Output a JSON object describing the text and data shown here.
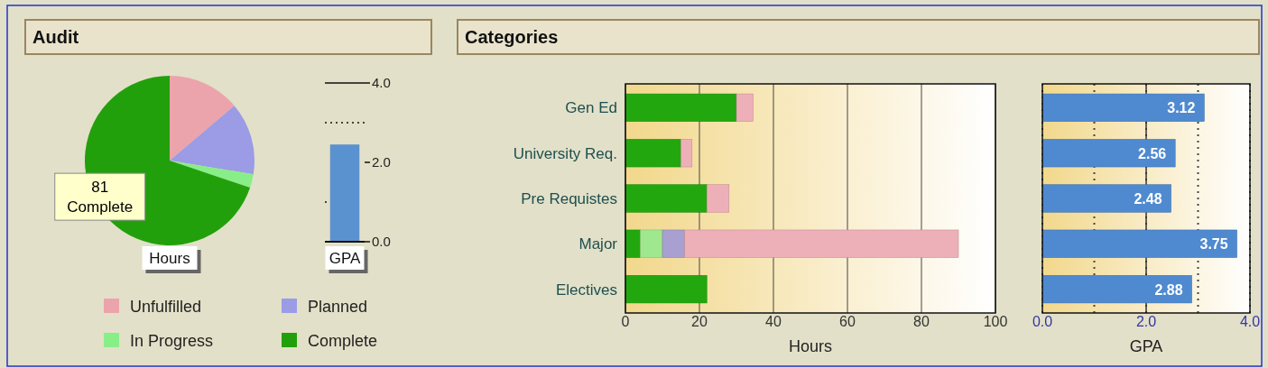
{
  "chart_data": [
    {
      "type": "pie",
      "title": "Audit",
      "xlabel": "Hours",
      "categories": [
        "Unfulfilled",
        "Planned",
        "In Progress",
        "Complete"
      ],
      "values": [
        16,
        16,
        3,
        81
      ],
      "colors": [
        "#eba4ab",
        "#9b9be6",
        "#88ee88",
        "#22a00c"
      ],
      "value_labels": [
        null,
        null,
        null,
        "81"
      ],
      "legend": "bottom"
    },
    {
      "type": "bar",
      "xlabel": "GPA",
      "categories": [
        null
      ],
      "values": [
        2.45
      ],
      "color": "#5a92d0",
      "ylim": [
        0,
        4
      ],
      "yticks": [
        {
          "value": 0,
          "label": "0.0"
        },
        {
          "value": 1,
          "label": null
        },
        {
          "value": 2,
          "label": "2.0"
        },
        {
          "value": 4,
          "label": "4.0"
        }
      ],
      "ref_lines": [
        {
          "axis": "y",
          "value": 3,
          "line_style": "dotted"
        },
        {
          "axis": "y",
          "value": 4,
          "line_style": "solid"
        }
      ]
    },
    {
      "type": "bar",
      "title": "Categories",
      "orientation": "horizontal",
      "stacked": true,
      "xlabel": "Hours",
      "categories": [
        "Gen Ed",
        "University Req.",
        "Pre Requistes",
        "Major",
        "Electives"
      ],
      "series": [
        {
          "color": "#22a80e",
          "values": [
            30,
            15,
            22,
            4,
            22
          ]
        },
        {
          "color": "#a0e890",
          "values": [
            0,
            0,
            0,
            6,
            0
          ]
        },
        {
          "color": "#a8a0d0",
          "values": [
            0,
            0,
            0,
            6,
            0
          ]
        },
        {
          "color": "#eeb0b8",
          "values": [
            4.5,
            3,
            6,
            74,
            0
          ]
        }
      ],
      "xlim": [
        0,
        100
      ],
      "xticks": [
        0,
        20,
        40,
        60,
        80,
        100
      ],
      "grid": "x"
    },
    {
      "type": "bar",
      "orientation": "horizontal",
      "xlabel": "GPA",
      "categories": [
        null,
        null,
        null,
        null,
        null
      ],
      "values": [
        3.12,
        2.56,
        2.48,
        3.75,
        2.88
      ],
      "color": "#4f8ad0",
      "data_labels": true,
      "xlim": [
        0,
        4
      ],
      "xticks": [
        {
          "value": 0,
          "label": "0.0"
        },
        {
          "value": 1,
          "label": null
        },
        {
          "value": 2,
          "label": "2.0"
        },
        {
          "value": 3,
          "label": null
        },
        {
          "value": 4,
          "label": "4.0"
        }
      ],
      "grid": "x",
      "tick_labels": "x",
      "ref_lines": [
        {
          "axis": "x",
          "value": 2,
          "line_style": "solid"
        }
      ]
    }
  ]
}
